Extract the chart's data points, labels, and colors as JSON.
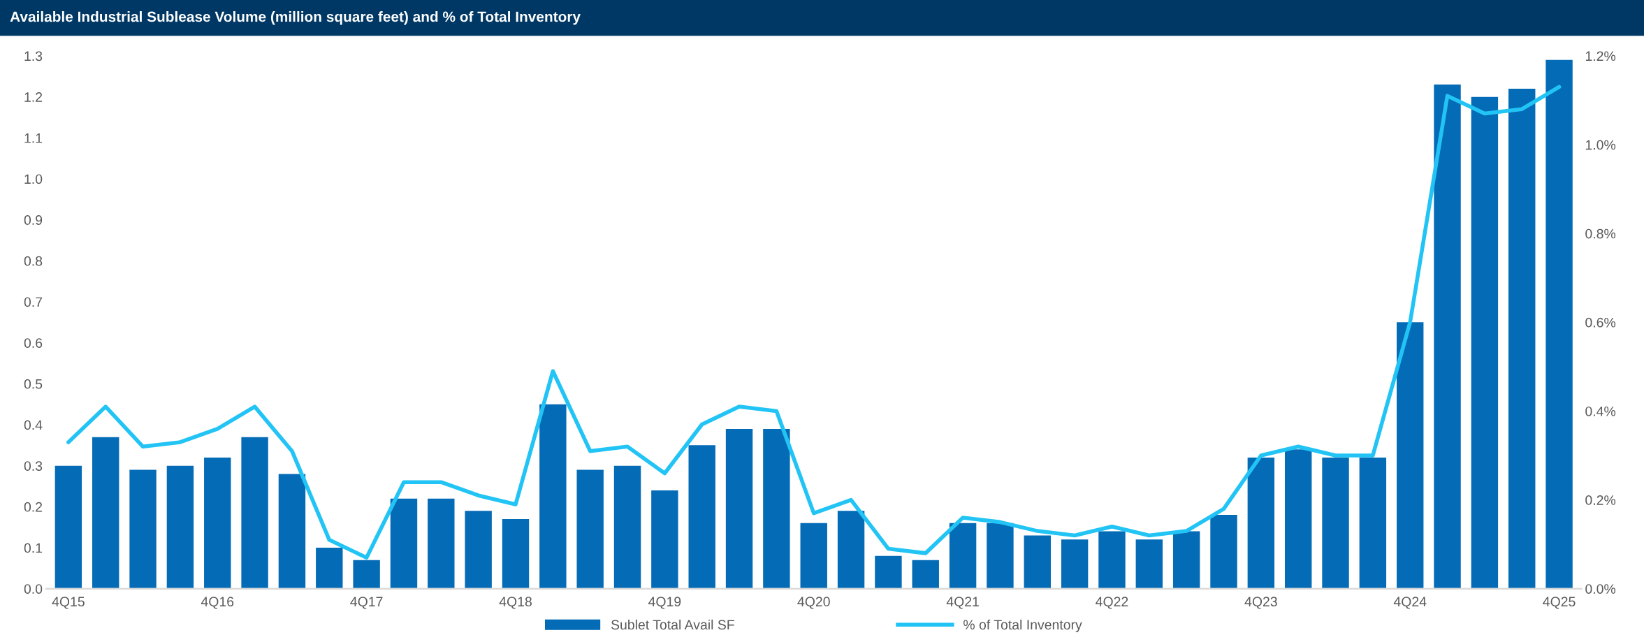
{
  "chart_data": {
    "type": "bar",
    "title": "Available Industrial Sublease Volume (million square feet) and % of Total Inventory",
    "categories": [
      "4Q15",
      null,
      null,
      null,
      "4Q16",
      null,
      null,
      null,
      "4Q17",
      null,
      null,
      null,
      "4Q18",
      null,
      null,
      null,
      "4Q19",
      null,
      null,
      null,
      "4Q20",
      null,
      null,
      null,
      "4Q21",
      null,
      null,
      null,
      "4Q22",
      null,
      null,
      null,
      "4Q23",
      null,
      null,
      null,
      "4Q24",
      null,
      null,
      null,
      "4Q25"
    ],
    "series": [
      {
        "name": "Sublet Total Avail SF",
        "color": "#046bb6",
        "values": [
          0.3,
          0.37,
          0.29,
          0.3,
          0.32,
          0.37,
          0.28,
          0.1,
          0.07,
          0.22,
          0.22,
          0.19,
          0.17,
          0.45,
          0.29,
          0.3,
          0.24,
          0.35,
          0.39,
          0.39,
          0.16,
          0.19,
          0.08,
          0.07,
          0.16,
          0.16,
          0.13,
          0.12,
          0.14,
          0.12,
          0.14,
          0.18,
          0.32,
          0.34,
          0.32,
          0.32,
          0.65,
          1.23,
          1.2,
          1.22,
          1.29
        ]
      },
      {
        "name": "% of Total Inventory",
        "type": "line",
        "axis": "y2",
        "color": "#21c4f5",
        "values": [
          0.33,
          0.41,
          0.32,
          0.33,
          0.36,
          0.41,
          0.31,
          0.11,
          0.07,
          0.24,
          0.24,
          0.21,
          0.19,
          0.49,
          0.31,
          0.32,
          0.26,
          0.37,
          0.41,
          0.4,
          0.17,
          0.2,
          0.09,
          0.08,
          0.16,
          0.15,
          0.13,
          0.12,
          0.14,
          0.12,
          0.13,
          0.18,
          0.3,
          0.32,
          0.3,
          0.3,
          0.6,
          1.11,
          1.07,
          1.08,
          1.13
        ]
      }
    ],
    "ylim": [
      0,
      1.3
    ],
    "yticks": [
      {
        "value": 0,
        "label": "0.0"
      },
      {
        "value": 0.1,
        "label": "0.1"
      },
      {
        "value": 0.2,
        "label": "0.2"
      },
      {
        "value": 0.3,
        "label": "0.3"
      },
      {
        "value": 0.4,
        "label": "0.4"
      },
      {
        "value": 0.5,
        "label": "0.5"
      },
      {
        "value": 0.6,
        "label": "0.6"
      },
      {
        "value": 0.7,
        "label": "0.7"
      },
      {
        "value": 0.8,
        "label": "0.8"
      },
      {
        "value": 0.9,
        "label": "0.9"
      },
      {
        "value": 1.0,
        "label": "1.0"
      },
      {
        "value": 1.1,
        "label": "1.1"
      },
      {
        "value": 1.2,
        "label": "1.2"
      },
      {
        "value": 1.3,
        "label": "1.3"
      }
    ],
    "y2lim": [
      0,
      1.2
    ],
    "y2ticks": [
      {
        "value": 0,
        "label": "0.0%"
      },
      {
        "value": 0.2,
        "label": "0.2%"
      },
      {
        "value": 0.4,
        "label": "0.4%"
      },
      {
        "value": 0.6,
        "label": "0.6%"
      },
      {
        "value": 0.8,
        "label": "0.8%"
      },
      {
        "value": 1.0,
        "label": "1.0%"
      },
      {
        "value": 1.2,
        "label": "1.2%"
      }
    ],
    "grid": false,
    "legend": "bottom",
    "marker": "none",
    "line_style": "solid"
  }
}
